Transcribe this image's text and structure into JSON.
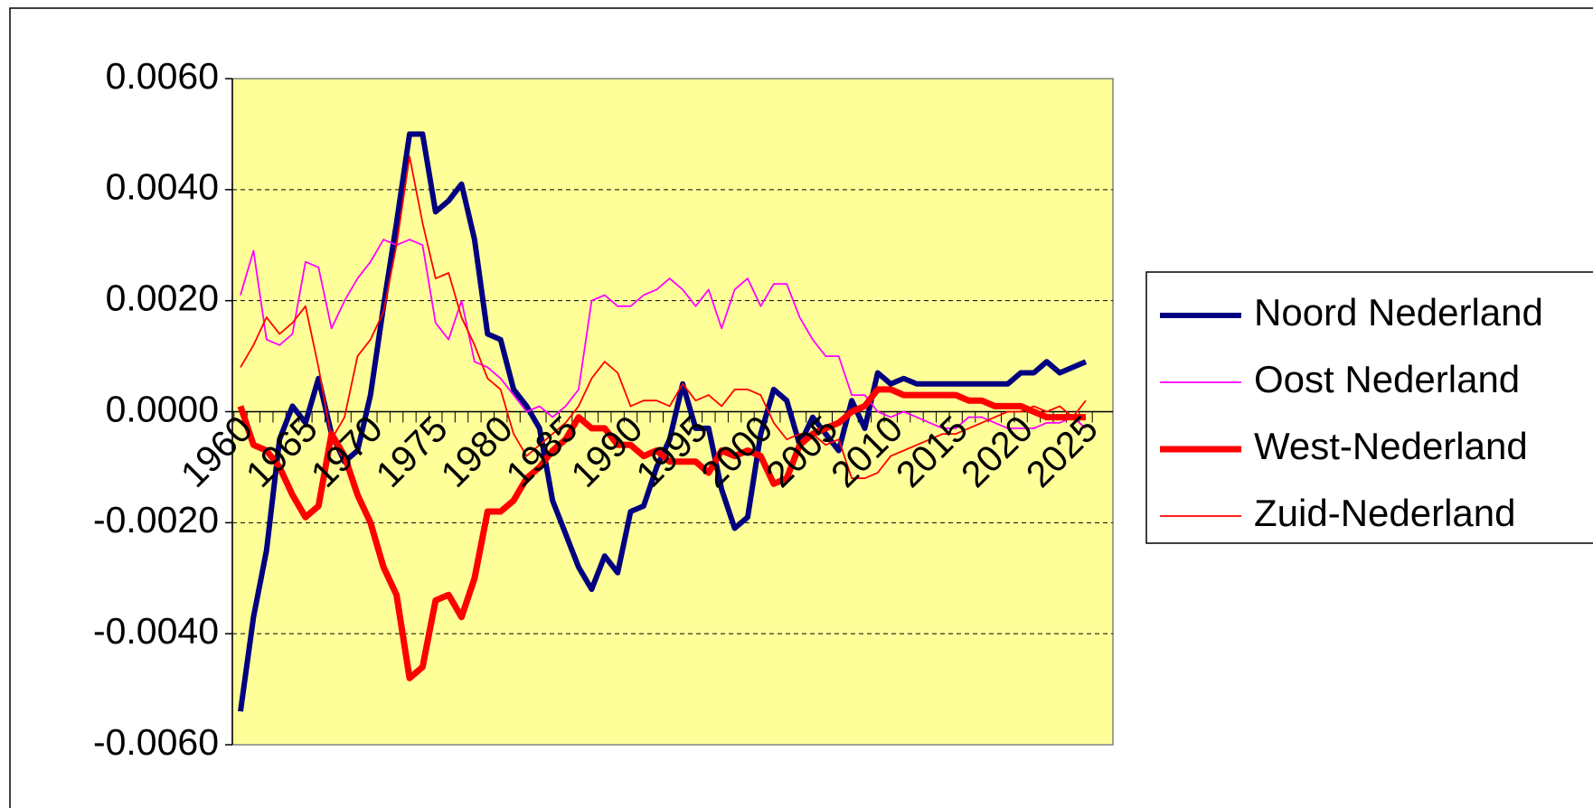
{
  "chart_data": {
    "type": "line",
    "categories": [
      "1960",
      null,
      null,
      null,
      null,
      "1965",
      null,
      null,
      null,
      null,
      "1970",
      null,
      null,
      null,
      null,
      "1975",
      null,
      null,
      null,
      null,
      "1980",
      null,
      null,
      null,
      null,
      "1985",
      null,
      null,
      null,
      null,
      "1990",
      null,
      null,
      null,
      null,
      "1995",
      null,
      null,
      null,
      null,
      "2000",
      null,
      null,
      null,
      null,
      "2005",
      null,
      null,
      null,
      null,
      "2010",
      null,
      null,
      null,
      null,
      "2015",
      null,
      null,
      null,
      null,
      "2020",
      null,
      null,
      null,
      null,
      "2025"
    ],
    "series": [
      {
        "name": "Noord Nederland",
        "color": "#000080",
        "line_width": 6,
        "values": [
          -0.0054,
          -0.0037,
          -0.0025,
          -0.0005,
          0.0001,
          -0.0002,
          0.0006,
          -0.0004,
          -0.0009,
          -0.0007,
          0.0003,
          0.0019,
          0.0034,
          0.005,
          0.005,
          0.0036,
          0.0038,
          0.0041,
          0.0031,
          0.0014,
          0.0013,
          0.0004,
          0.0001,
          -0.0003,
          -0.0016,
          -0.0022,
          -0.0028,
          -0.0032,
          -0.0026,
          -0.0029,
          -0.0018,
          -0.0017,
          -0.001,
          -0.0005,
          0.0005,
          -0.0003,
          -0.0003,
          -0.0014,
          -0.0021,
          -0.0019,
          -0.0004,
          0.0004,
          0.0002,
          -0.0006,
          -0.0001,
          -0.0004,
          -0.0007,
          0.0002,
          -0.0003,
          0.0007,
          0.0005,
          0.0006,
          0.0005,
          0.0005,
          0.0005,
          0.0005,
          0.0005,
          0.0005,
          0.0005,
          0.0005,
          0.0007,
          0.0007,
          0.0009,
          0.0007,
          0.0008,
          0.0009
        ]
      },
      {
        "name": "Oost Nederland",
        "color": "#ff00ff",
        "line_width": 1.8,
        "values": [
          0.0021,
          0.0029,
          0.0013,
          0.0012,
          0.0014,
          0.0027,
          0.0026,
          0.0015,
          0.002,
          0.0024,
          0.0027,
          0.0031,
          0.003,
          0.0031,
          0.003,
          0.0016,
          0.0013,
          0.002,
          0.0009,
          0.0008,
          0.0006,
          0.0003,
          0.0,
          0.0001,
          -0.0001,
          0.0001,
          0.0004,
          0.002,
          0.0021,
          0.0019,
          0.0019,
          0.0021,
          0.0022,
          0.0024,
          0.0022,
          0.0019,
          0.0022,
          0.0015,
          0.0022,
          0.0024,
          0.0019,
          0.0023,
          0.0023,
          0.0017,
          0.0013,
          0.001,
          0.001,
          0.0003,
          0.0003,
          0.0,
          -0.0001,
          0.0,
          -0.0001,
          -0.0002,
          -0.0003,
          -0.0003,
          -0.0001,
          -0.0001,
          -0.0002,
          -0.0003,
          -0.0003,
          -0.0003,
          -0.0002,
          -0.0002,
          -0.0001,
          -0.0003
        ]
      },
      {
        "name": "West-Nederland",
        "color": "#ff0000",
        "line_width": 7,
        "values": [
          0.0001,
          -0.0006,
          -0.0007,
          -0.001,
          -0.0015,
          -0.0019,
          -0.0017,
          -0.0004,
          -0.0008,
          -0.0015,
          -0.002,
          -0.0028,
          -0.0033,
          -0.0048,
          -0.0046,
          -0.0034,
          -0.0033,
          -0.0037,
          -0.003,
          -0.0018,
          -0.0018,
          -0.0016,
          -0.0012,
          -0.001,
          -0.0007,
          -0.0005,
          -0.0001,
          -0.0003,
          -0.0003,
          -0.0006,
          -0.0006,
          -0.0008,
          -0.0007,
          -0.0009,
          -0.0009,
          -0.0009,
          -0.0011,
          -0.0007,
          -0.0008,
          -0.0007,
          -0.0008,
          -0.0013,
          -0.0012,
          -0.0006,
          -0.0004,
          -0.0003,
          -0.0002,
          0.0,
          0.0001,
          0.0004,
          0.0004,
          0.0003,
          0.0003,
          0.0003,
          0.0003,
          0.0003,
          0.0002,
          0.0002,
          0.0001,
          0.0001,
          0.0001,
          0.0,
          -0.0001,
          -0.0001,
          -0.0001,
          -0.0001
        ]
      },
      {
        "name": "Zuid-Nederland",
        "color": "#ff0000",
        "line_width": 1.8,
        "values": [
          0.0008,
          0.0012,
          0.0017,
          0.0014,
          0.0016,
          0.0019,
          0.0008,
          -0.0005,
          -0.0001,
          0.001,
          0.0013,
          0.0018,
          0.003,
          0.0046,
          0.0034,
          0.0024,
          0.0025,
          0.0017,
          0.0012,
          0.0006,
          0.0004,
          -0.0004,
          -0.0008,
          -0.0006,
          -0.0004,
          -0.0002,
          0.0001,
          0.0006,
          0.0009,
          0.0007,
          0.0001,
          0.0002,
          0.0002,
          0.0001,
          0.0005,
          0.0002,
          0.0003,
          0.0001,
          0.0004,
          0.0004,
          0.0003,
          -0.0002,
          -0.0005,
          -0.0004,
          -0.0004,
          -0.0006,
          -0.0005,
          -0.0012,
          -0.0012,
          -0.0011,
          -0.0008,
          -0.0007,
          -0.0006,
          -0.0005,
          -0.0004,
          -0.0004,
          -0.0003,
          -0.0002,
          -0.0001,
          0.0,
          0.0,
          0.0001,
          0.0,
          0.0001,
          -0.0001,
          0.0002
        ]
      }
    ],
    "ylim": [
      -0.006,
      0.006
    ],
    "yticks": [
      {
        "value": -0.006,
        "label": "-0.0060"
      },
      {
        "value": -0.004,
        "label": "-0.0040"
      },
      {
        "value": -0.002,
        "label": "-0.0020"
      },
      {
        "value": 0,
        "label": "0.0000"
      },
      {
        "value": 0.002,
        "label": "0.0020"
      },
      {
        "value": 0.004,
        "label": "0.0040"
      },
      {
        "value": 0.006,
        "label": "0.0060"
      }
    ],
    "grid": true,
    "plot_background": "#ffff99",
    "legend": "right"
  }
}
